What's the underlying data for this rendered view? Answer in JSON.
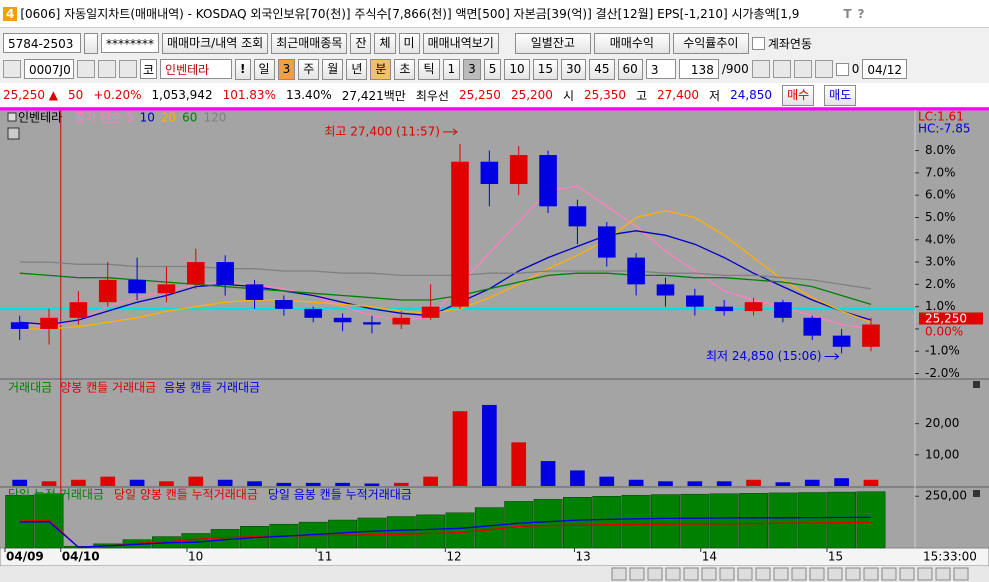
{
  "title_bar": {
    "badge": "4",
    "text": "[0606] 자동일지차트(매매내역) - KOSDAQ 외국인보유[70(천)] 주식수[7,866(천)] 액면[500] 자본금[39(억)] 결산[12월] EPS[-1,210] 시가총액[1,9",
    "tools": [
      "T",
      "?"
    ]
  },
  "toolbar1": {
    "account": "5784-2503",
    "password": "********",
    "buttons": [
      "매매마크/내역 조회",
      "최근매매종목",
      "잔",
      "체",
      "미",
      "매매내역보기"
    ],
    "buttons_right": [
      "일별잔고",
      "매매수익",
      "수익률추이"
    ],
    "checkbox_label": "계좌연동"
  },
  "toolbar2": {
    "code": "0007J0",
    "market": "코",
    "name": "인벤테라",
    "alert": "!",
    "period": "일",
    "period_count": "3",
    "intervals": [
      "주",
      "월",
      "년",
      "분",
      "초",
      "틱"
    ],
    "active_interval": 3,
    "minutes": [
      "1",
      "3",
      "5",
      "10",
      "15",
      "30",
      "45",
      "60"
    ],
    "active_minute": 1,
    "spin": "3",
    "count": "138",
    "max": "/900",
    "check_label": "0",
    "date": "04/12"
  },
  "quote": [
    {
      "text": "25,250 ▲",
      "color": "#e00000"
    },
    {
      "text": "50",
      "color": "#e00000"
    },
    {
      "text": "+0.20%",
      "color": "#e00000"
    },
    {
      "text": "1,053,942",
      "color": "#000000"
    },
    {
      "text": "101.83%",
      "color": "#e00000"
    },
    {
      "text": "13.40%",
      "color": "#000000"
    },
    {
      "text": "27,421백만",
      "color": "#000000"
    },
    {
      "text": "최우선",
      "color": "#000000"
    },
    {
      "text": "25,250",
      "color": "#e00000"
    },
    {
      "text": "25,200",
      "color": "#e00000"
    },
    {
      "text": "시",
      "color": "#000000"
    },
    {
      "text": "25,350",
      "color": "#e00000"
    },
    {
      "text": "고",
      "color": "#000000"
    },
    {
      "text": "27,400",
      "color": "#e00000"
    },
    {
      "text": "저",
      "color": "#000000"
    },
    {
      "text": "24,850",
      "color": "#0000e0"
    }
  ],
  "order_buttons": [
    {
      "text": "매수",
      "color": "#e00000"
    },
    {
      "text": "매도",
      "color": "#0000e0"
    }
  ],
  "chart_data": [
    {
      "type": "candlestick",
      "name": "인벤테라",
      "open": [
        0.3,
        0.0,
        0.5,
        1.2,
        2.2,
        1.6,
        2.0,
        3.0,
        2.0,
        1.3,
        0.9,
        0.5,
        0.3,
        0.2,
        0.5,
        1.0,
        7.5,
        6.5,
        7.8,
        5.5,
        4.6,
        3.2,
        2.0,
        1.5,
        1.0,
        0.8,
        1.2,
        0.5,
        -0.3,
        -0.8
      ],
      "high": [
        0.6,
        0.9,
        1.7,
        3.0,
        3.2,
        2.8,
        3.6,
        3.3,
        2.2,
        1.5,
        1.0,
        0.7,
        0.6,
        0.8,
        2.0,
        8.3,
        8.0,
        8.2,
        8.0,
        5.8,
        4.8,
        3.4,
        2.3,
        1.8,
        1.3,
        1.4,
        1.3,
        0.6,
        0.0,
        0.5
      ],
      "low": [
        -0.5,
        -0.7,
        0.2,
        1.0,
        1.3,
        1.2,
        1.8,
        1.5,
        0.9,
        0.6,
        0.3,
        -0.1,
        -0.2,
        0.0,
        0.4,
        0.9,
        5.5,
        6.0,
        5.2,
        3.8,
        2.8,
        1.5,
        1.0,
        0.6,
        0.6,
        0.6,
        0.3,
        -0.5,
        -1.1,
        -1.0
      ],
      "close": [
        0.0,
        0.5,
        1.2,
        2.2,
        1.6,
        2.0,
        3.0,
        2.0,
        1.3,
        0.9,
        0.5,
        0.3,
        0.2,
        0.5,
        1.0,
        7.5,
        6.5,
        7.8,
        5.5,
        4.6,
        3.2,
        2.0,
        1.5,
        1.0,
        0.8,
        1.2,
        0.5,
        -0.3,
        -0.8,
        0.2
      ],
      "up_color": "#e00000",
      "down_color": "#0000e0",
      "series": [
        {
          "name": "종가 단순 5",
          "color": "#ff80c0",
          "values": [
            0.2,
            0.1,
            0.4,
            1.0,
            1.4,
            1.7,
            2.0,
            2.1,
            2.0,
            1.8,
            1.5,
            1.0,
            0.6,
            0.4,
            0.5,
            2.0,
            3.4,
            4.8,
            6.2,
            6.4,
            5.5,
            4.6,
            3.5,
            2.6,
            1.7,
            1.3,
            1.0,
            0.6,
            0.2,
            0.0
          ]
        },
        {
          "name": "10",
          "color": "#0000c0",
          "values": [
            0.3,
            0.2,
            0.4,
            0.8,
            1.2,
            1.5,
            1.9,
            2.0,
            1.9,
            1.7,
            1.5,
            1.2,
            0.9,
            0.7,
            0.6,
            1.2,
            1.8,
            2.6,
            3.2,
            3.7,
            4.2,
            4.4,
            4.2,
            3.8,
            3.2,
            2.5,
            1.9,
            1.3,
            0.8,
            0.4
          ]
        },
        {
          "name": "20",
          "color": "#ffb000",
          "values": [
            0.0,
            0.0,
            0.1,
            0.3,
            0.5,
            0.8,
            1.0,
            1.2,
            1.3,
            1.3,
            1.2,
            1.1,
            1.0,
            0.8,
            0.7,
            0.9,
            1.4,
            2.0,
            2.7,
            3.3,
            4.0,
            5.0,
            5.3,
            5.0,
            4.2,
            3.2,
            2.2,
            1.4,
            0.8,
            0.3
          ]
        },
        {
          "name": "60",
          "color": "#008000",
          "values": [
            2.5,
            2.4,
            2.3,
            2.3,
            2.2,
            2.1,
            2.0,
            1.9,
            1.8,
            1.7,
            1.6,
            1.5,
            1.4,
            1.3,
            1.3,
            1.5,
            1.8,
            2.1,
            2.4,
            2.5,
            2.5,
            2.4,
            2.4,
            2.3,
            2.3,
            2.2,
            2.1,
            1.9,
            1.5,
            1.1
          ]
        },
        {
          "name": "120",
          "color": "#808080",
          "values": [
            3.0,
            3.0,
            2.9,
            2.9,
            2.8,
            2.8,
            2.8,
            2.7,
            2.7,
            2.6,
            2.6,
            2.5,
            2.5,
            2.4,
            2.4,
            2.4,
            2.5,
            2.5,
            2.6,
            2.6,
            2.6,
            2.6,
            2.5,
            2.5,
            2.4,
            2.4,
            2.3,
            2.2,
            2.0,
            1.8
          ]
        }
      ],
      "ylim": [
        -2.2,
        9.73
      ],
      "yticks": [
        {
          "value": 8,
          "label": "8.0%"
        },
        {
          "value": 7,
          "label": "7.0%"
        },
        {
          "value": 6,
          "label": "6.0%"
        },
        {
          "value": 5,
          "label": "5.0%"
        },
        {
          "value": 4,
          "label": "4.0%"
        },
        {
          "value": 3,
          "label": "3.0%"
        },
        {
          "value": 2,
          "label": "2.0%"
        },
        {
          "value": 1,
          "label": "1.0%"
        },
        {
          "value": -1,
          "label": "-1.0%"
        },
        {
          "value": -2,
          "label": "-2.0%"
        }
      ],
      "reference_line": {
        "value": 0.9,
        "color": "#00e0e0"
      },
      "last_price": {
        "value": 0.2,
        "label": "25,250"
      },
      "zero_label": {
        "value": 0,
        "label": "0.00%"
      },
      "lc_label": "LC:1.61",
      "hc_label": "HC:-7.85",
      "annotations": {
        "high": "최고 27,400 (11:57)",
        "low": "최저 24,850 (15:06)"
      }
    },
    {
      "type": "bar",
      "label": "거래대금",
      "label_color": "#008000",
      "series": [
        {
          "name": "양봉 캔들 거래대금",
          "color": "#e00000",
          "values": [
            null,
            1.5,
            2,
            3,
            null,
            1.5,
            3,
            null,
            null,
            null,
            null,
            null,
            null,
            1,
            3,
            24,
            null,
            14,
            null,
            null,
            null,
            null,
            null,
            null,
            null,
            2,
            null,
            null,
            null,
            2
          ]
        },
        {
          "name": "음봉 캔들 거래대금",
          "color": "#0000e0",
          "values": [
            2,
            null,
            null,
            null,
            2,
            null,
            null,
            2,
            1.5,
            1,
            1,
            1,
            0.8,
            null,
            null,
            null,
            26,
            null,
            8,
            5,
            3,
            2,
            1.5,
            1.5,
            1.5,
            null,
            1.2,
            2,
            2.5,
            null
          ]
        }
      ],
      "ylim": [
        0,
        34
      ],
      "yticks": [
        {
          "value": 20,
          "label": "20,00"
        },
        {
          "value": 10,
          "label": "10,00"
        }
      ]
    },
    {
      "type": "bar-line",
      "series": [
        {
          "name": "당일 누적 거래대금",
          "color": "#008000",
          "values": [
            255,
            262,
            8,
            20,
            40,
            55,
            70,
            90,
            105,
            115,
            125,
            135,
            145,
            152,
            160,
            170,
            195,
            225,
            235,
            245,
            250,
            255,
            258,
            260,
            262,
            264,
            266,
            268,
            270,
            272
          ]
        },
        {
          "name": "당일 양봉 캔들 누적거래대금",
          "color": "#e00000",
          "values": [
            130,
            135,
            4,
            10,
            22,
            30,
            42,
            50,
            55,
            58,
            60,
            62,
            64,
            66,
            70,
            75,
            88,
            105,
            108,
            110,
            112,
            114,
            115,
            116,
            117,
            118,
            120,
            121,
            122,
            124
          ]
        },
        {
          "name": "당일 음봉 캔들 누적거래대금",
          "color": "#0000e0",
          "values": [
            125,
            127,
            4,
            10,
            18,
            25,
            28,
            40,
            50,
            57,
            65,
            73,
            81,
            86,
            90,
            95,
            107,
            120,
            127,
            135,
            138,
            141,
            143,
            144,
            145,
            146,
            146,
            147,
            148,
            148
          ]
        }
      ],
      "ylim": [
        0,
        285
      ],
      "yticks": [
        {
          "value": 250,
          "label": "250,00"
        }
      ],
      "xlim": [
        0,
        31
      ],
      "xticks": [
        {
          "value": 0,
          "label": "04/09"
        },
        {
          "value": 1.9,
          "label": "04/10"
        },
        {
          "value": 6.2,
          "label": "10"
        },
        {
          "value": 10.6,
          "label": "11"
        },
        {
          "value": 15.0,
          "label": "12"
        },
        {
          "value": 19.4,
          "label": "13"
        },
        {
          "value": 23.7,
          "label": "14"
        },
        {
          "value": 28.0,
          "label": "15"
        }
      ],
      "time_label": "15:33:00"
    }
  ]
}
